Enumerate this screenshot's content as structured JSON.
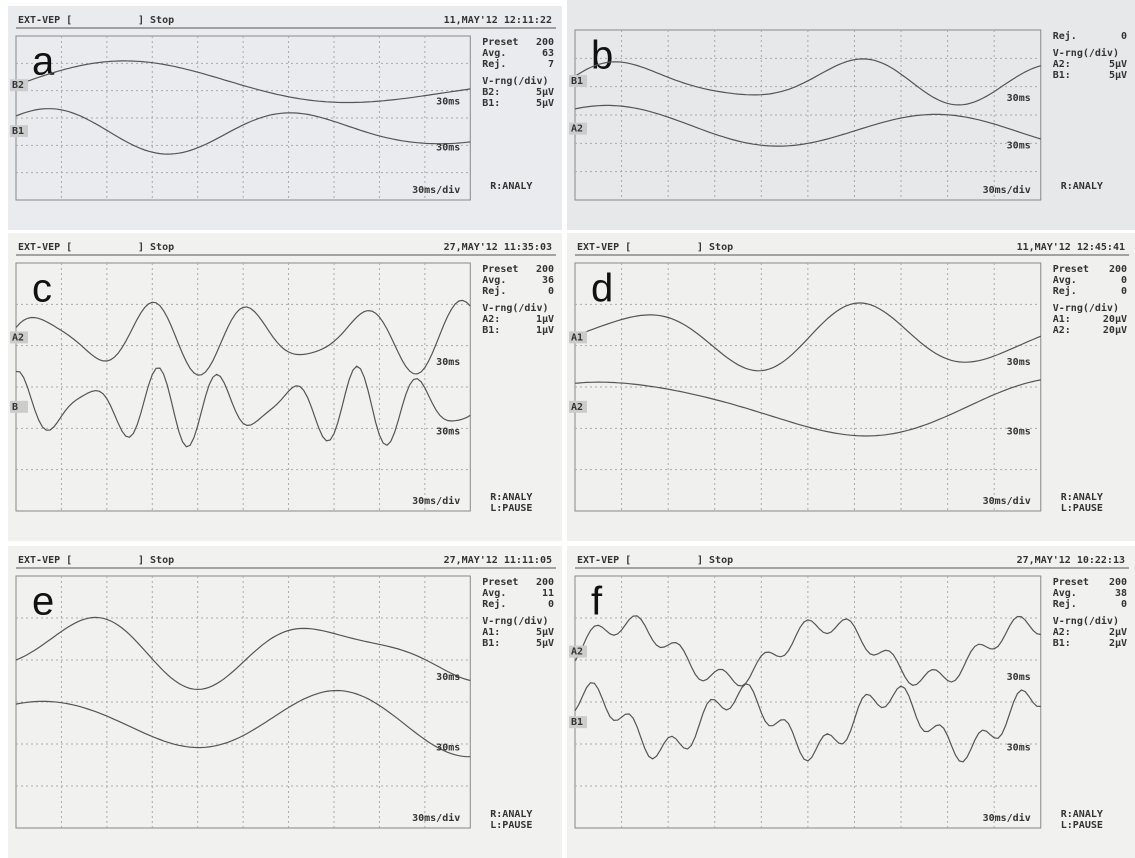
{
  "panels": [
    {
      "label": "a",
      "header": [
        "EXT-VEP [",
        "] Stop",
        "11,MAY'12 12:11:22"
      ],
      "info": [
        [
          "Preset",
          "200"
        ],
        [
          "Avg.",
          "63"
        ],
        [
          "Rej.",
          "7"
        ]
      ],
      "vrange": "V-rng(/div)",
      "channels": [
        [
          "B2:",
          "5µV"
        ],
        [
          "B1:",
          "5µV"
        ]
      ],
      "traces": [
        {
          "channel": "B2",
          "time": "30ms"
        },
        {
          "channel": "B1",
          "time": "30ms"
        }
      ],
      "scale": "30ms/div",
      "keys": [
        "R:ANALY"
      ]
    },
    {
      "label": "b",
      "info": [
        [
          "Rej.",
          "0"
        ]
      ],
      "vrange": "V-rng(/div)",
      "channels": [
        [
          "A2:",
          "5µV"
        ],
        [
          "B1:",
          "5µV"
        ]
      ],
      "traces": [
        {
          "channel": "B1",
          "time": "30ms"
        },
        {
          "channel": "A2",
          "time": "30ms"
        }
      ],
      "scale": "30ms/div",
      "keys": [
        "R:ANALY"
      ]
    },
    {
      "label": "c",
      "header": [
        "EXT-VEP [",
        "] Stop",
        "27,MAY'12 11:35:03"
      ],
      "info": [
        [
          "Preset",
          "200"
        ],
        [
          "Avg.",
          "36"
        ],
        [
          "Rej.",
          "0"
        ]
      ],
      "vrange": "V-rng(/div)",
      "channels": [
        [
          "A2:",
          "1µV"
        ],
        [
          "B1:",
          "1µV"
        ]
      ],
      "traces": [
        {
          "channel": "A2",
          "time": "30ms"
        },
        {
          "channel": "B",
          "time": "30ms"
        }
      ],
      "scale": "30ms/div",
      "keys": [
        "R:ANALY",
        "L:PAUSE"
      ]
    },
    {
      "label": "d",
      "header": [
        "EXT-VEP [",
        "] Stop",
        "11,MAY'12 12:45:41"
      ],
      "info": [
        [
          "Preset",
          "200"
        ],
        [
          "Avg.",
          "0"
        ],
        [
          "Rej.",
          "0"
        ]
      ],
      "vrange": "V-rng(/div)",
      "channels": [
        [
          "A1:",
          "20µV"
        ],
        [
          "A2:",
          "20µV"
        ]
      ],
      "traces": [
        {
          "channel": "A1",
          "time": "30ms"
        },
        {
          "channel": "A2",
          "time": "30ms"
        }
      ],
      "scale": "30ms/div",
      "keys": [
        "R:ANALY",
        "L:PAUSE"
      ]
    },
    {
      "label": "e",
      "header": [
        "EXT-VEP [",
        "] Stop",
        "27,MAY'12 11:11:05"
      ],
      "info": [
        [
          "Preset",
          "200"
        ],
        [
          "Avg.",
          "11"
        ],
        [
          "Rej.",
          "0"
        ]
      ],
      "vrange": "V-rng(/div)",
      "channels": [
        [
          "A1:",
          "5µV"
        ],
        [
          "B1:",
          "5µV"
        ]
      ],
      "traces": [
        {
          "time": "30ms"
        },
        {
          "time": "30ms"
        }
      ],
      "scale": "30ms/div",
      "keys": [
        "R:ANALY",
        "L:PAUSE"
      ]
    },
    {
      "label": "f",
      "header": [
        "EXT-VEP [",
        "] Stop",
        "27,MAY'12 10:22:13"
      ],
      "info": [
        [
          "Preset",
          "200"
        ],
        [
          "Avg.",
          "38"
        ],
        [
          "Rej.",
          "0"
        ]
      ],
      "vrange": "V-rng(/div)",
      "channels": [
        [
          "A2:",
          "2µV"
        ],
        [
          "B1:",
          "2µV"
        ]
      ],
      "traces": [
        {
          "channel": "A2",
          "time": "30ms"
        },
        {
          "channel": "B1",
          "time": "30ms"
        }
      ],
      "scale": "30ms/div",
      "keys": [
        "R:ANALY",
        "L:PAUSE"
      ]
    }
  ]
}
